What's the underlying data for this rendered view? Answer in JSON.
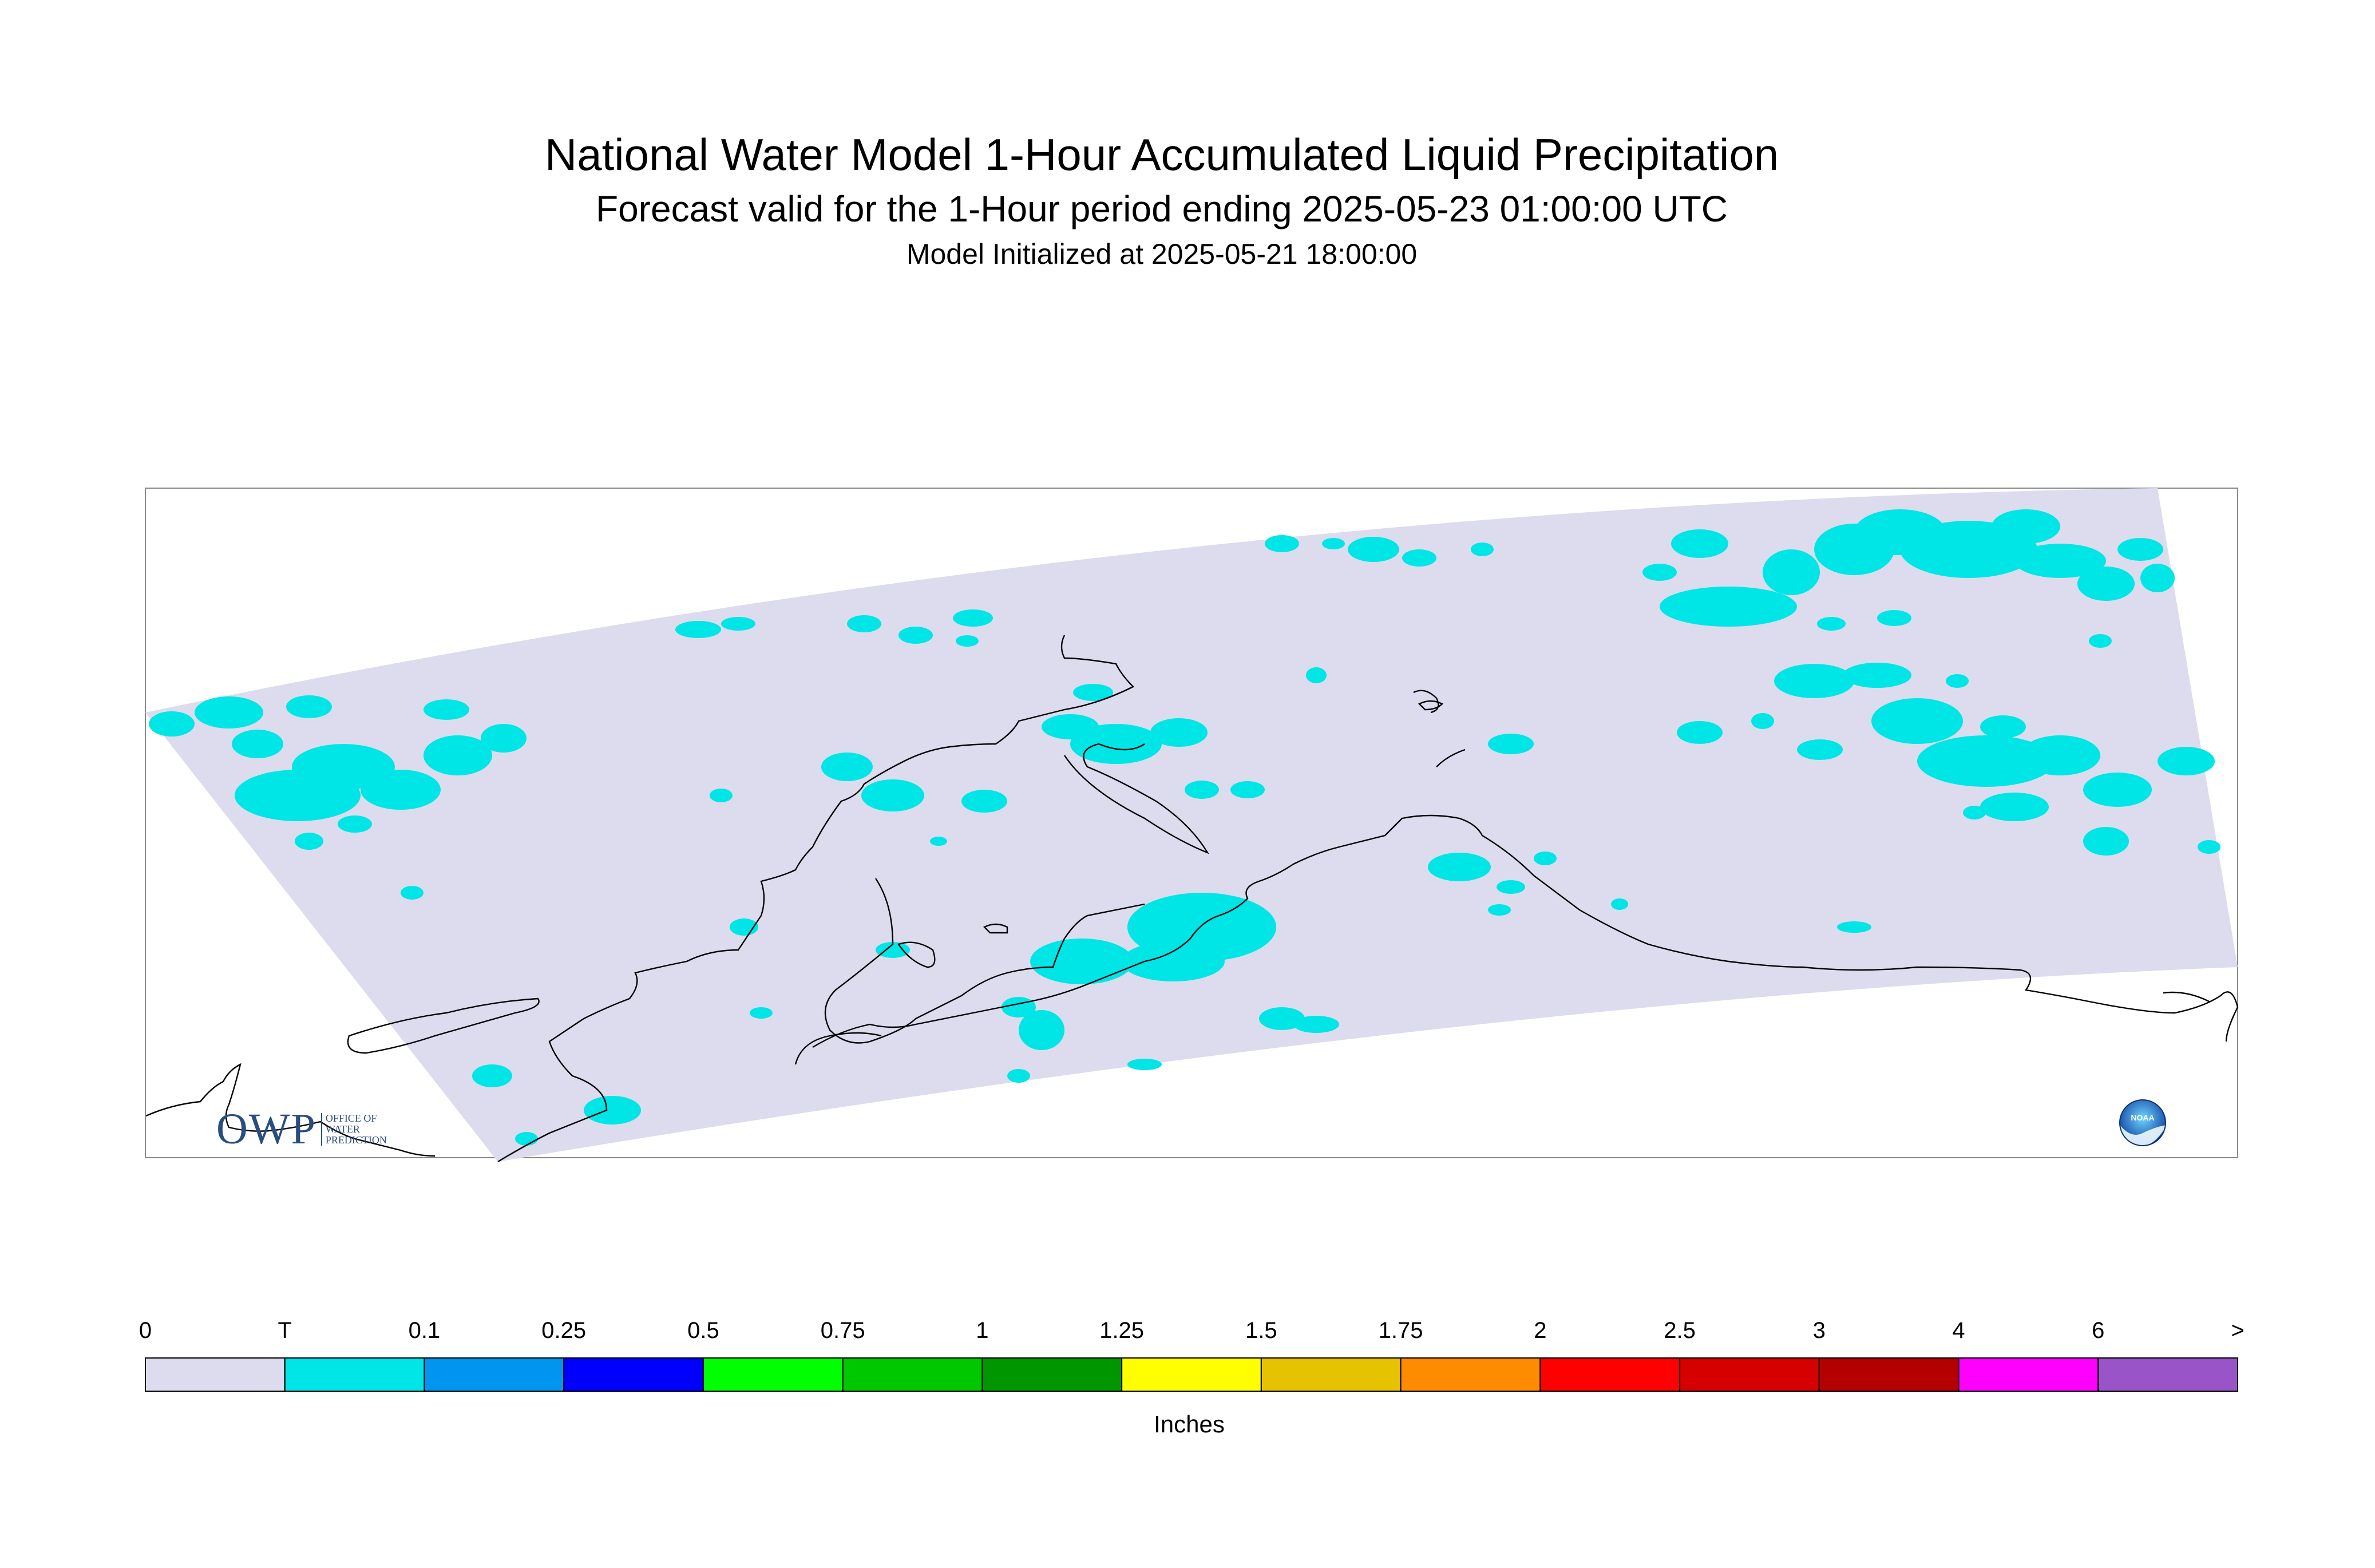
{
  "title": {
    "line1": "National Water Model 1-Hour Accumulated Liquid Precipitation",
    "line2": "Forecast valid for the 1-Hour period ending 2025-05-23 01:00:00 UTC",
    "line3": "Model Initialized at 2025-05-21 18:00:00"
  },
  "map": {
    "region": "Alaska",
    "domain_color": "#dcdcee",
    "trace_color": "#00e5e5",
    "coastline_color": "#000000"
  },
  "colorbar": {
    "units": "Inches",
    "labels": [
      "0",
      "T",
      "0.1",
      "0.25",
      "0.5",
      "0.75",
      "1",
      "1.25",
      "1.5",
      "1.75",
      "2",
      "2.5",
      "3",
      "4",
      "6",
      ">"
    ],
    "colors": [
      "#dcdcee",
      "#00e5e5",
      "#0096f0",
      "#0000ff",
      "#00ff00",
      "#00c800",
      "#009600",
      "#ffff00",
      "#e6c300",
      "#ff8c00",
      "#ff0000",
      "#d70000",
      "#b40000",
      "#ff00ff",
      "#9955c8"
    ]
  },
  "logos": {
    "owp": {
      "text": "OWP",
      "subtext": "OFFICE OF WATER PREDICTION"
    },
    "noaa": {
      "text": "NOAA"
    }
  }
}
